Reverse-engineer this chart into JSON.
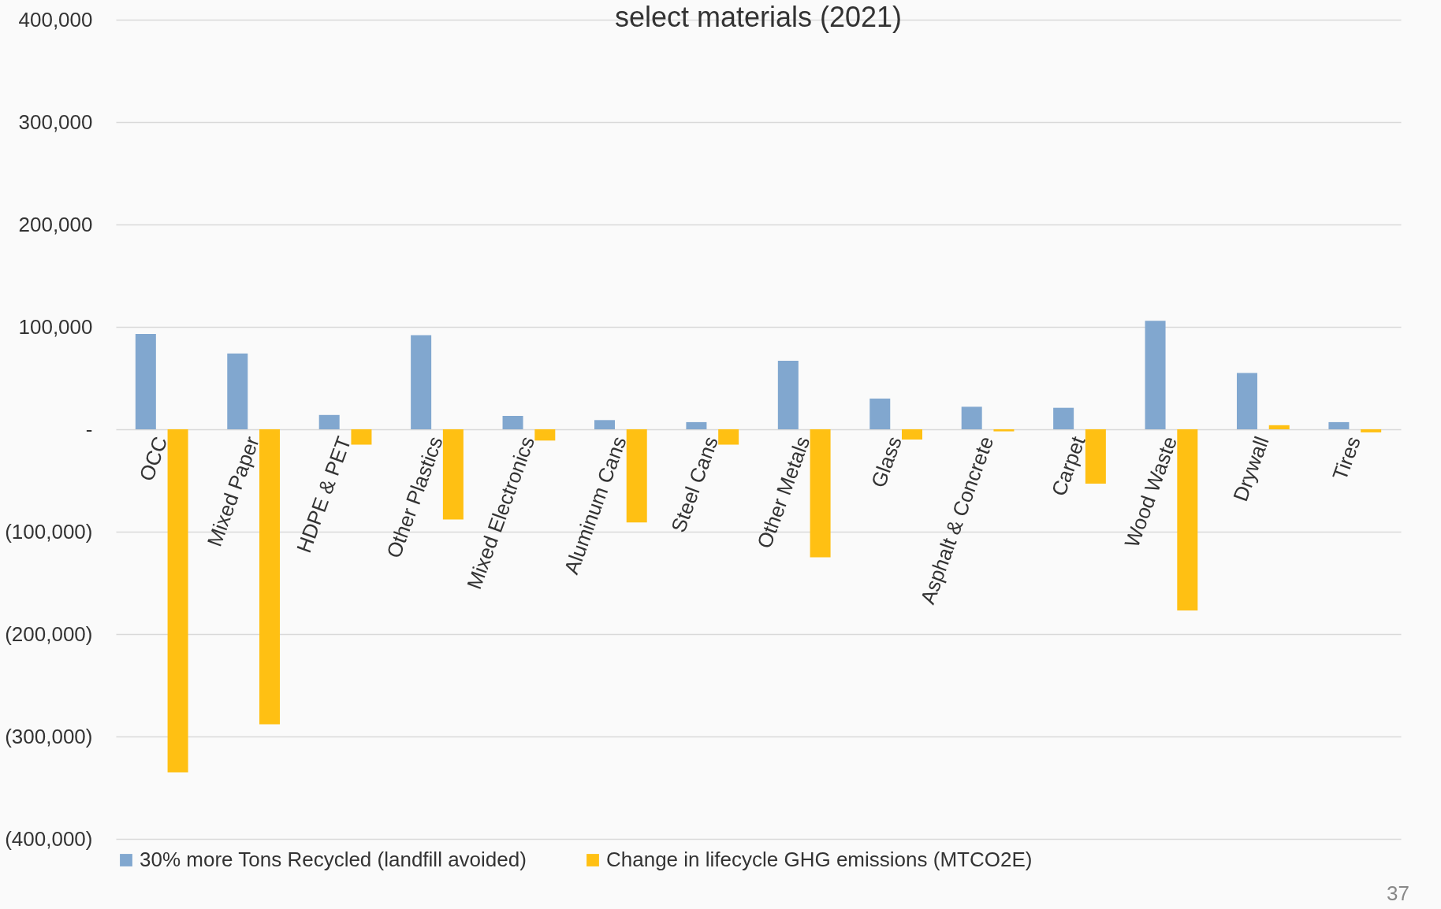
{
  "chart_data": {
    "type": "bar",
    "title": "select materials (2021)",
    "categories": [
      "OCC",
      "Mixed Paper",
      "HDPE & PET",
      "Other Plastics",
      "Mixed Electronics",
      "Aluminum Cans",
      "Steel Cans",
      "Other Metals",
      "Glass",
      "Asphalt & Concrete",
      "Carpet",
      "Wood Waste",
      "Drywall",
      "Tires"
    ],
    "series": [
      {
        "name": "30% more Tons Recycled (landfill avoided)",
        "color": "#81a7cf",
        "values": [
          93000,
          74000,
          14000,
          92000,
          13000,
          9000,
          7000,
          67000,
          30000,
          22000,
          21000,
          106000,
          55000,
          7000
        ]
      },
      {
        "name": "Change in lifecycle GHG emissions (MTCO2E)",
        "color": "#ffc013",
        "values": [
          -335000,
          -288000,
          -15000,
          -88000,
          -11000,
          -91000,
          -15000,
          -125000,
          -10000,
          -2000,
          -53000,
          -177000,
          4000,
          -3000
        ]
      }
    ],
    "ylim": [
      -400000,
      400000
    ],
    "yticks": [
      {
        "value": -400000,
        "label": "(400,000)"
      },
      {
        "value": -300000,
        "label": "(300,000)"
      },
      {
        "value": -200000,
        "label": "(200,000)"
      },
      {
        "value": -100000,
        "label": "(100,000)"
      },
      {
        "value": 0,
        "label": "-"
      },
      {
        "value": 100000,
        "label": "100,000"
      },
      {
        "value": 200000,
        "label": "200,000"
      },
      {
        "value": 300000,
        "label": "300,000"
      },
      {
        "value": 400000,
        "label": "400,000"
      }
    ],
    "grid": "y",
    "legend": "bottom",
    "annotations": [
      "37"
    ]
  }
}
